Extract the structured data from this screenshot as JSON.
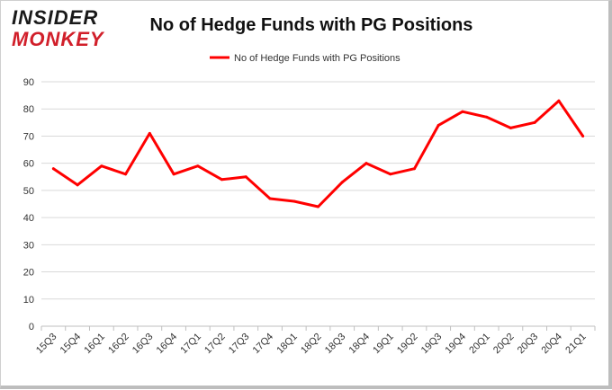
{
  "logo": {
    "line1": "INSIDER",
    "line2": "MONKEY"
  },
  "chart_data": {
    "type": "line",
    "title": "No of Hedge Funds with PG Positions",
    "xlabel": "",
    "ylabel": "",
    "categories": [
      "15Q3",
      "15Q4",
      "16Q1",
      "16Q2",
      "16Q3",
      "16Q4",
      "17Q1",
      "17Q2",
      "17Q3",
      "17Q4",
      "18Q1",
      "18Q2",
      "18Q3",
      "18Q4",
      "19Q1",
      "19Q2",
      "19Q3",
      "19Q4",
      "20Q1",
      "20Q2",
      "20Q3",
      "20Q4",
      "21Q1"
    ],
    "series": [
      {
        "name": "No of Hedge Funds with PG Positions",
        "color": "#ff0000",
        "values": [
          58,
          52,
          59,
          56,
          71,
          56,
          59,
          54,
          55,
          47,
          46,
          44,
          53,
          60,
          56,
          58,
          74,
          79,
          77,
          73,
          75,
          83,
          70
        ]
      }
    ],
    "ylim": [
      0,
      90
    ],
    "yticks": [
      0,
      10,
      20,
      30,
      40,
      50,
      60,
      70,
      80,
      90
    ],
    "grid": true,
    "legend_position": "top-center"
  }
}
